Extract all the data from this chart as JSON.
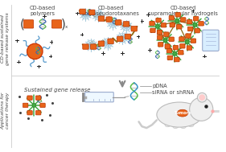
{
  "bg_color": "#ffffff",
  "orange": "#E8641A",
  "green": "#5BBF4A",
  "blue_arm": "#5599CC",
  "light_blue_snow": "#AACCDD",
  "brown_chain": "#8B6914",
  "dark_green_star": "#44AA44",
  "gray": "#AAAAAA",
  "black": "#222222",
  "text_color": "#444444",
  "labels": {
    "vert_top": "CD-based sustained\ngene release systems",
    "vert_bot": "Applications for\ncancer therapy",
    "cd_poly": "CD-based\npolymers",
    "cd_pseudo": "CD-based\npolypseudorotaxanes",
    "cd_hydro": "CD-based\nsupramolecular hydrogels",
    "sustained": "Sustained gene release",
    "pdna": "pDNA",
    "sirna": "siRNA or shRNA",
    "tumors": "Tumors"
  },
  "figsize": [
    2.81,
    1.89
  ],
  "dpi": 100
}
